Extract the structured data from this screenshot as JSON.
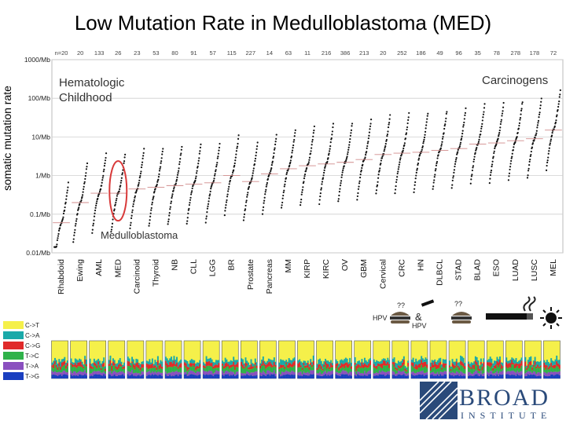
{
  "title": "Low Mutation Rate in Medulloblastoma (MED)",
  "chart_data": {
    "type": "scatter",
    "ylabel": "somatic mutation rate",
    "yscale": "log",
    "ylim": [
      0.01,
      1000
    ],
    "yticks": [
      "1000/Mb",
      "100/Mb",
      "10/Mb",
      "1/Mb",
      "0.1/Mb",
      "0.01/Mb"
    ],
    "categories": [
      "Rhabdoid",
      "Ewing",
      "AML",
      "MED",
      "Carcinoid",
      "Thyroid",
      "NB",
      "CLL",
      "LGG",
      "BR",
      "Prostate",
      "Pancreas",
      "MM",
      "KIRP",
      "KIRC",
      "OV",
      "GBM",
      "Cervical",
      "CRC",
      "HN",
      "DLBCL",
      "STAD",
      "BLAD",
      "ESO",
      "LUAD",
      "LUSC",
      "MEL"
    ],
    "counts": [
      "n=20",
      "20",
      "133",
      "26",
      "23",
      "53",
      "80",
      "91",
      "57",
      "115",
      "227",
      "14",
      "63",
      "11",
      "216",
      "386",
      "213",
      "20",
      "252",
      "186",
      "49",
      "96",
      "35",
      "78",
      "278",
      "178",
      "72"
    ],
    "medians": [
      0.06,
      0.2,
      0.35,
      0.35,
      0.45,
      0.5,
      0.55,
      0.6,
      0.65,
      1.0,
      0.7,
      1.1,
      1.5,
      1.8,
      2.0,
      2.2,
      2.6,
      3.5,
      3.8,
      4.0,
      4.5,
      5.0,
      6.5,
      7.0,
      8.0,
      9.0,
      15.0
    ],
    "annotations": {
      "left_group": [
        "Hematologic",
        "Childhood"
      ],
      "right_group": "Carcinogens",
      "highlight": "Medulloblastoma",
      "hpv1": "HPV",
      "hpv2": "HPV",
      "amp": "&",
      "unknown1": "??",
      "unknown2": "??"
    },
    "colors": {
      "circle": "#d83a3a",
      "points": "#111111",
      "spectra_legend": [
        "#f5f04a",
        "#1aa9a9",
        "#e02a2a",
        "#2fb24a",
        "#8a4fbf",
        "#1a3fc0"
      ]
    }
  },
  "spectra_legend": [
    "C->T",
    "C->A",
    "C->G",
    "T->C",
    "T->A",
    "T->G"
  ],
  "logo": {
    "name": "BROAD",
    "sub": "INSTITUTE"
  }
}
